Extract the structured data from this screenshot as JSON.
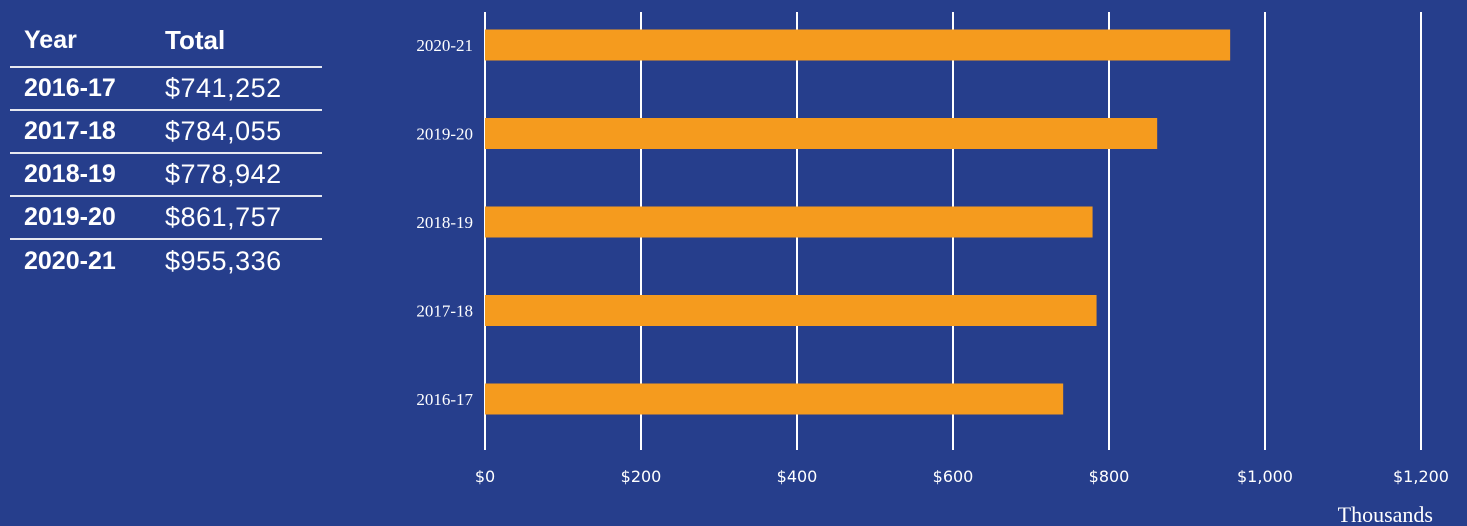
{
  "table": {
    "headers": [
      "Year",
      "Total"
    ],
    "rows": [
      {
        "year": "2016-17",
        "total": "$741,252"
      },
      {
        "year": "2017-18",
        "total": "$784,055"
      },
      {
        "year": "2018-19",
        "total": "$778,942"
      },
      {
        "year": "2019-20",
        "total": "$861,757"
      },
      {
        "year": "2020-21",
        "total": "$955,336"
      }
    ]
  },
  "colors": {
    "background": "#263e8c",
    "bar": "#f59b1e",
    "grid": "#ffffff",
    "text": "#ffffff"
  },
  "chart_data": {
    "type": "bar",
    "orientation": "horizontal",
    "categories": [
      "2020-21",
      "2019-20",
      "2018-19",
      "2017-18",
      "2016-17"
    ],
    "values": [
      955.336,
      861.757,
      778.942,
      784.055,
      741.252
    ],
    "xticks": [
      "$0",
      "$200",
      "$400",
      "$600",
      "$800",
      "$1,000",
      "$1,200"
    ],
    "xlim": [
      0,
      1200
    ],
    "xlabel": "Thousands",
    "grid": true
  }
}
